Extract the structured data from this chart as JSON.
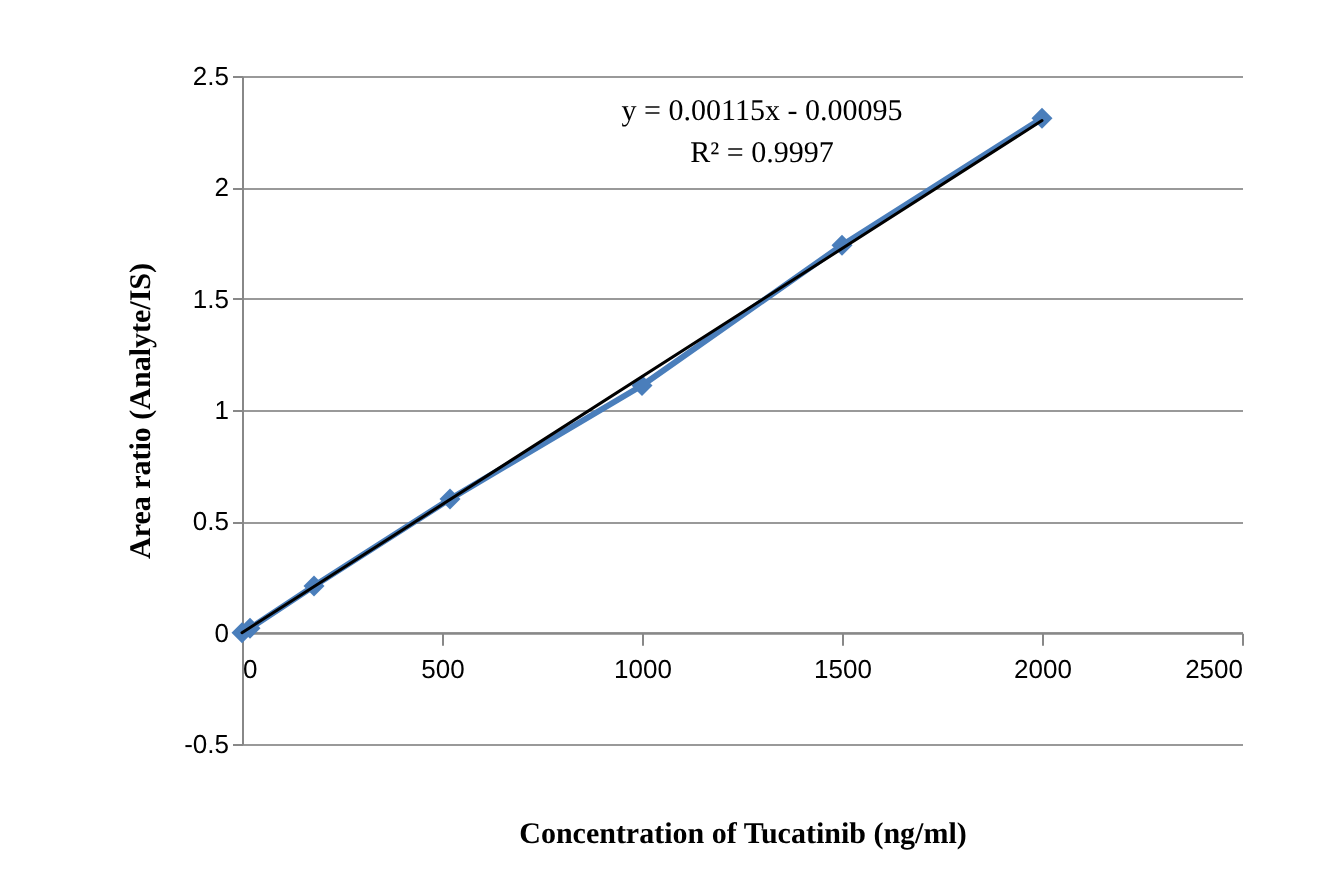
{
  "chart_data": {
    "type": "line",
    "xlabel": "Concentration  of Tucatinib  (ng/ml)",
    "ylabel": "Area ratio (Analyte/IS)",
    "annotations": [
      "y = 0.00115x  - 0.00095",
      "R² = 0.9997"
    ],
    "xlim": [
      0,
      2500
    ],
    "xticks": [
      0,
      500,
      1000,
      1500,
      2000,
      2500
    ],
    "ylim": [
      -0.5,
      2.5
    ],
    "yticks": [
      -0.5,
      0,
      0.5,
      1,
      1.5,
      2,
      2.5
    ],
    "grid": "y",
    "marker": "diamond",
    "line_style": "solid",
    "series": [
      {
        "color": "#4a7ebb",
        "x": [
          0,
          20,
          180,
          520,
          1000,
          1500,
          2000
        ],
        "values": [
          0,
          0.02,
          0.21,
          0.6,
          1.11,
          1.74,
          2.31
        ]
      },
      {
        "type": "line",
        "marker": "none",
        "color": "#000000",
        "x": [
          0,
          2000
        ],
        "values": [
          0,
          2.3
        ]
      }
    ]
  }
}
